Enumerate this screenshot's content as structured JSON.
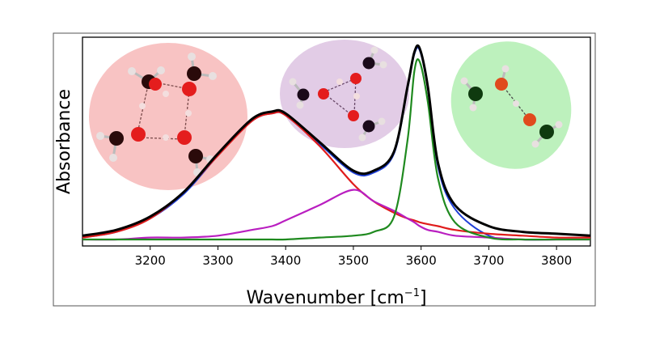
{
  "chart_data": {
    "type": "line",
    "title": "",
    "xlabel_base": "Wavenumber [cm",
    "xlabel_exp": "−1",
    "xlabel_close": "]",
    "ylabel": "Absorbance",
    "xlim": [
      3100,
      3850
    ],
    "ylim": [
      0,
      1.0
    ],
    "x_ticks": [
      "3200",
      "3300",
      "3400",
      "3500",
      "3600",
      "3700",
      "3800"
    ],
    "y_ticks": [],
    "grid": false,
    "legend": "none",
    "x": [
      3100,
      3150,
      3200,
      3250,
      3300,
      3350,
      3380,
      3400,
      3450,
      3500,
      3530,
      3560,
      3580,
      3590,
      3598,
      3610,
      3625,
      3650,
      3700,
      3750,
      3800,
      3850
    ],
    "series": [
      {
        "color": "#000000",
        "values": [
          0.02,
          0.05,
          0.12,
          0.25,
          0.45,
          0.63,
          0.67,
          0.66,
          0.51,
          0.36,
          0.36,
          0.46,
          0.8,
          0.98,
          1.0,
          0.8,
          0.4,
          0.18,
          0.07,
          0.04,
          0.03,
          0.02
        ]
      },
      {
        "color": "#1f3fd6",
        "values": [
          0.01,
          0.04,
          0.11,
          0.24,
          0.44,
          0.62,
          0.66,
          0.65,
          0.5,
          0.35,
          0.35,
          0.45,
          0.79,
          0.97,
          0.99,
          0.79,
          0.38,
          0.16,
          0.02,
          0.0,
          0.0,
          0.0
        ]
      },
      {
        "color": "#e01c1c",
        "values": [
          0.01,
          0.04,
          0.11,
          0.25,
          0.44,
          0.62,
          0.66,
          0.65,
          0.49,
          0.29,
          0.2,
          0.14,
          0.11,
          0.1,
          0.09,
          0.08,
          0.07,
          0.05,
          0.03,
          0.02,
          0.01,
          0.01
        ]
      },
      {
        "color": "#b91ec0",
        "values": [
          0.0,
          0.0,
          0.01,
          0.01,
          0.02,
          0.05,
          0.07,
          0.1,
          0.18,
          0.26,
          0.2,
          0.15,
          0.11,
          0.09,
          0.07,
          0.05,
          0.04,
          0.02,
          0.01,
          0.0,
          0.0,
          0.0
        ]
      },
      {
        "color": "#1f8a1f",
        "values": [
          0.0,
          0.0,
          0.0,
          0.0,
          0.0,
          0.0,
          0.0,
          0.0,
          0.01,
          0.02,
          0.04,
          0.12,
          0.52,
          0.88,
          0.93,
          0.72,
          0.32,
          0.09,
          0.01,
          0.0,
          0.0,
          0.0
        ]
      }
    ]
  },
  "images": [
    {
      "name": "water-tetramer",
      "bg": "#f7b9b9"
    },
    {
      "name": "water-trimer",
      "bg": "#dfc7e3"
    },
    {
      "name": "water-dimer",
      "bg": "#b6f0b6"
    }
  ]
}
